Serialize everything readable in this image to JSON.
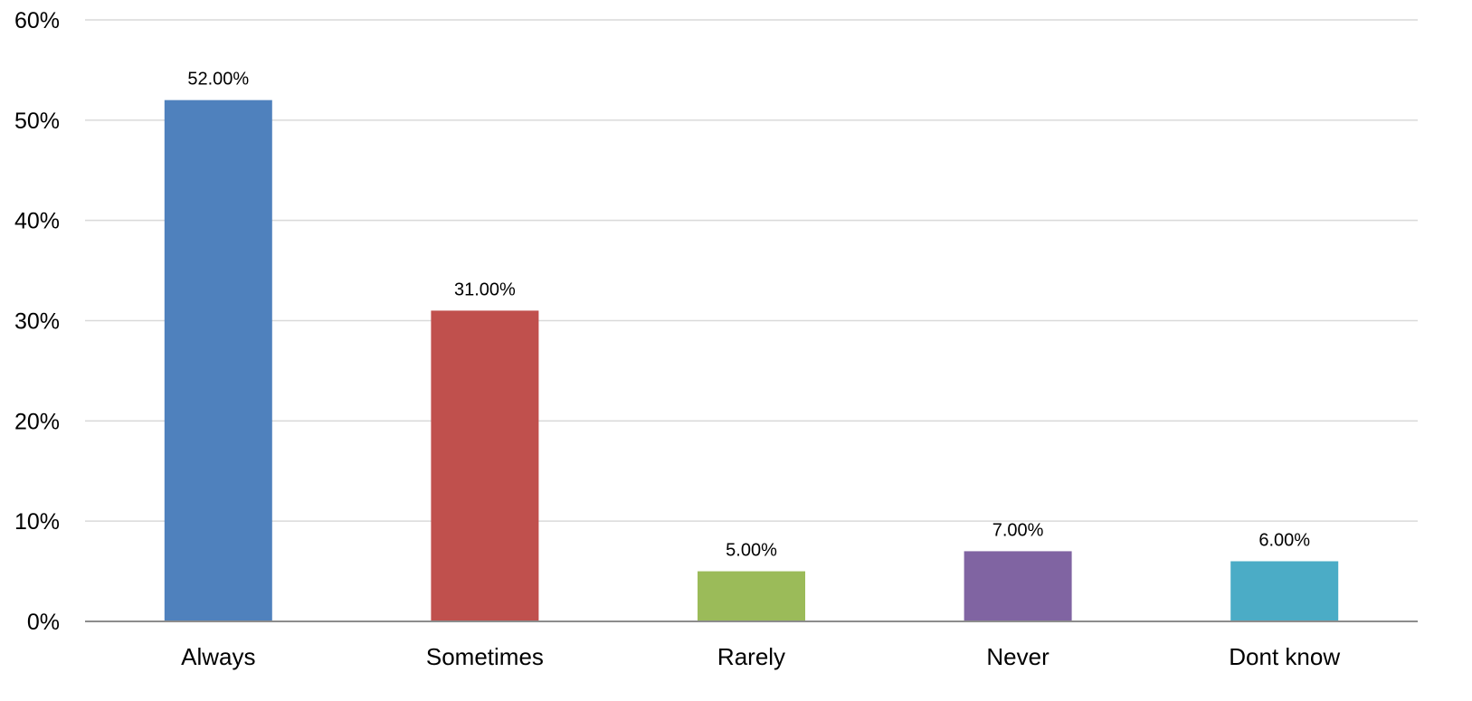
{
  "chart_data": {
    "type": "bar",
    "title": "",
    "xlabel": "",
    "ylabel": "",
    "categories": [
      "Always",
      "Sometimes",
      "Rarely",
      "Never",
      "Dont know"
    ],
    "values": [
      52,
      31,
      5,
      7,
      6
    ],
    "data_labels": [
      "52.00%",
      "31.00%",
      "5.00%",
      "7.00%",
      "6.00%"
    ],
    "ylim": [
      0,
      60
    ],
    "yticks": [
      0,
      10,
      20,
      30,
      40,
      50,
      60
    ],
    "ytick_labels": [
      "0%",
      "10%",
      "20%",
      "30%",
      "40%",
      "50%",
      "60%"
    ],
    "colors": [
      "#4f81bd",
      "#c0504d",
      "#9bbb59",
      "#8064a2",
      "#4bacc6"
    ],
    "grid": true,
    "legend": "none"
  }
}
